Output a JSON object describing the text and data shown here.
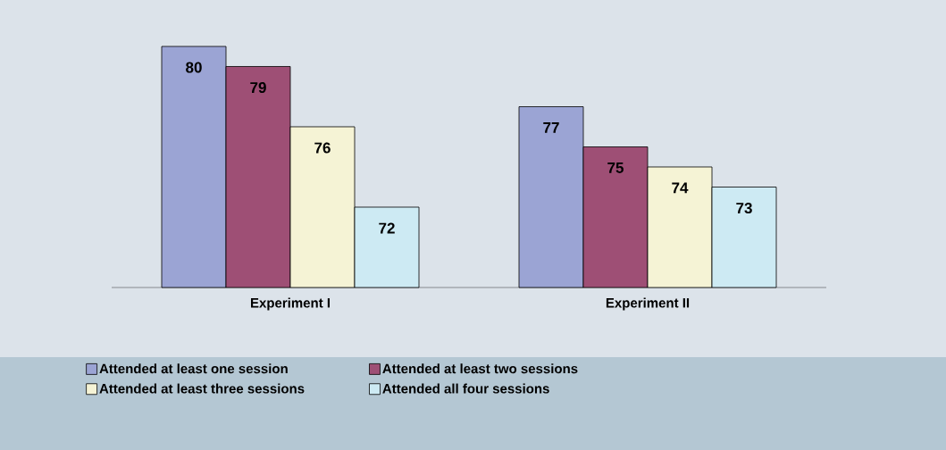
{
  "chart_data": {
    "type": "bar",
    "categories": [
      "Experiment I",
      "Experiment II"
    ],
    "series": [
      {
        "name": "Attended at least one session",
        "color": "#9ba4d4",
        "values": [
          80,
          77
        ]
      },
      {
        "name": "Attended at least two sessions",
        "color": "#9e4f75",
        "values": [
          79,
          75
        ]
      },
      {
        "name": "Attended at least three sessions",
        "color": "#f5f3d5",
        "values": [
          76,
          74
        ]
      },
      {
        "name": "Attended all four sessions",
        "color": "#cdeaf3",
        "values": [
          72,
          73
        ]
      }
    ],
    "ylim": [
      68,
      80
    ],
    "data_labels": true,
    "legend": "bottom"
  }
}
